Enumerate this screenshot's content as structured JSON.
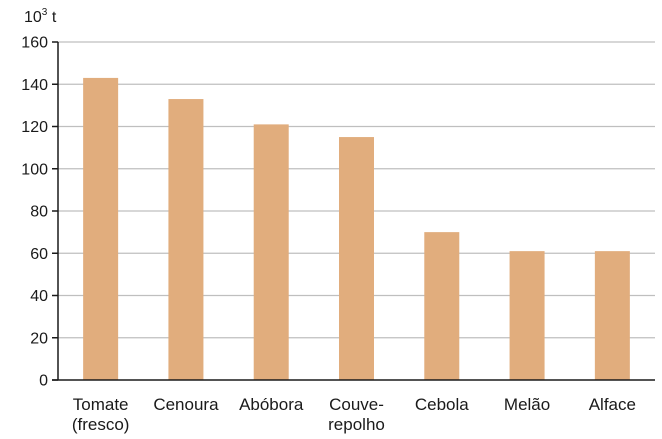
{
  "chart_data": {
    "type": "bar",
    "unit_label": {
      "base": "10",
      "exp": "3",
      "unit": "t"
    },
    "categories": [
      {
        "lines": [
          "Tomate",
          "(fresco)"
        ]
      },
      {
        "lines": [
          "Cenoura"
        ]
      },
      {
        "lines": [
          "Abóbora"
        ]
      },
      {
        "lines": [
          "Couve-",
          "repolho"
        ]
      },
      {
        "lines": [
          "Cebola"
        ]
      },
      {
        "lines": [
          "Melão"
        ]
      },
      {
        "lines": [
          "Alface"
        ]
      }
    ],
    "values": [
      143,
      133,
      121,
      115,
      70,
      61,
      61
    ],
    "ylim": [
      0,
      160
    ],
    "yticks": [
      0,
      20,
      40,
      60,
      80,
      100,
      120,
      140,
      160
    ],
    "grid": true,
    "legend": "none",
    "colors": {
      "bar": "#e1ad7d",
      "grid": "#bfbfbf",
      "axis": "#1a1a1a"
    }
  }
}
